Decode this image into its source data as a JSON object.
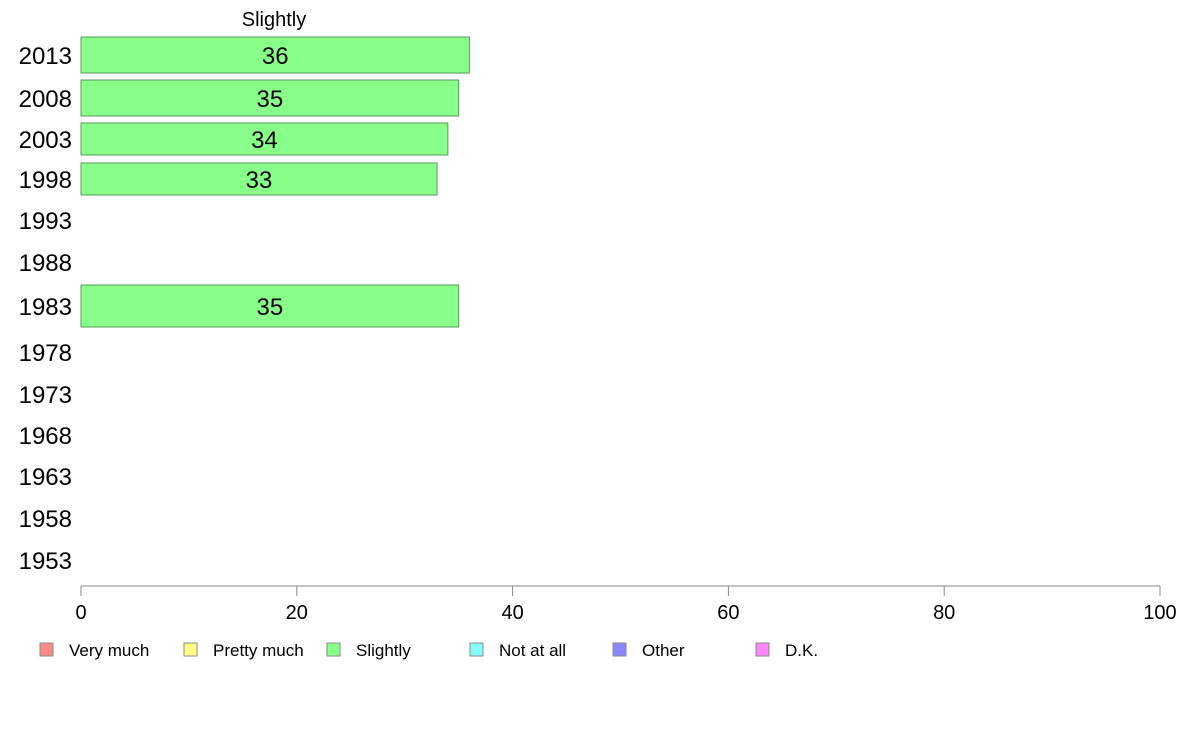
{
  "chart_data": {
    "type": "bar",
    "orientation": "horizontal",
    "title": "Slightly",
    "categories": [
      "2013",
      "2008",
      "2003",
      "1998",
      "1993",
      "1988",
      "1983",
      "1978",
      "1973",
      "1968",
      "1963",
      "1958",
      "1953"
    ],
    "series": [
      {
        "name": "Slightly",
        "color": "#88ff88",
        "values": [
          36,
          35,
          34,
          33,
          null,
          null,
          35,
          null,
          null,
          null,
          null,
          null,
          null
        ]
      }
    ],
    "xlim": [
      0,
      100
    ],
    "xticks": [
      "0",
      "20",
      "40",
      "60",
      "80",
      "100"
    ],
    "grid": false,
    "legend_position": "bottom",
    "legend": [
      {
        "label": "Very much",
        "color": "#ff8888"
      },
      {
        "label": "Pretty much",
        "color": "#ffff88"
      },
      {
        "label": "Slightly",
        "color": "#88ff88"
      },
      {
        "label": "Not at all",
        "color": "#88ffff"
      },
      {
        "label": "Other",
        "color": "#8888ff"
      },
      {
        "label": "D.K.",
        "color": "#ff88ff"
      }
    ]
  }
}
